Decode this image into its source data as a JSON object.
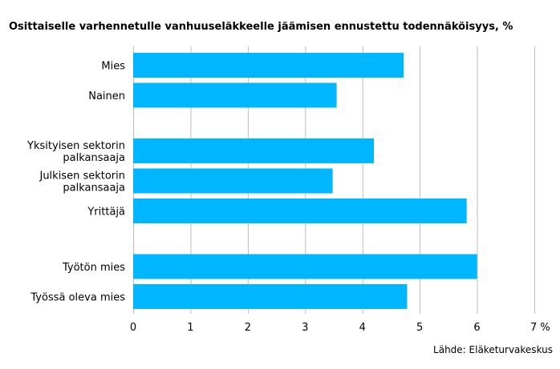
{
  "chart_data": {
    "type": "bar",
    "orientation": "horizontal",
    "title": "Osittaiselle varhennetulle vanhuuseläkkeelle jäämisen ennustettu todennäköisyys, %",
    "groups": [
      {
        "categories": [
          [
            "Mies"
          ],
          [
            "Nainen"
          ]
        ],
        "values": [
          4.72,
          3.55
        ]
      },
      {
        "categories": [
          [
            "Yksityisen sektorin",
            "palkansaaja"
          ],
          [
            "Julkisen sektorin",
            "palkansaaja"
          ],
          [
            "Yrittäjä"
          ]
        ],
        "values": [
          4.2,
          3.48,
          5.82
        ]
      },
      {
        "categories": [
          [
            "Työtön mies"
          ],
          [
            "Työssä oleva mies"
          ]
        ],
        "values": [
          6.0,
          4.78
        ]
      }
    ],
    "xlim": [
      0,
      7
    ],
    "x_ticks": [
      "0",
      "1",
      "2",
      "3",
      "4",
      "5",
      "6",
      "7 %"
    ],
    "grid": true,
    "bar_color": "#00b7ff",
    "grid_color": "#bdbdbd"
  },
  "source": "Lähde: Eläketurvakeskus"
}
